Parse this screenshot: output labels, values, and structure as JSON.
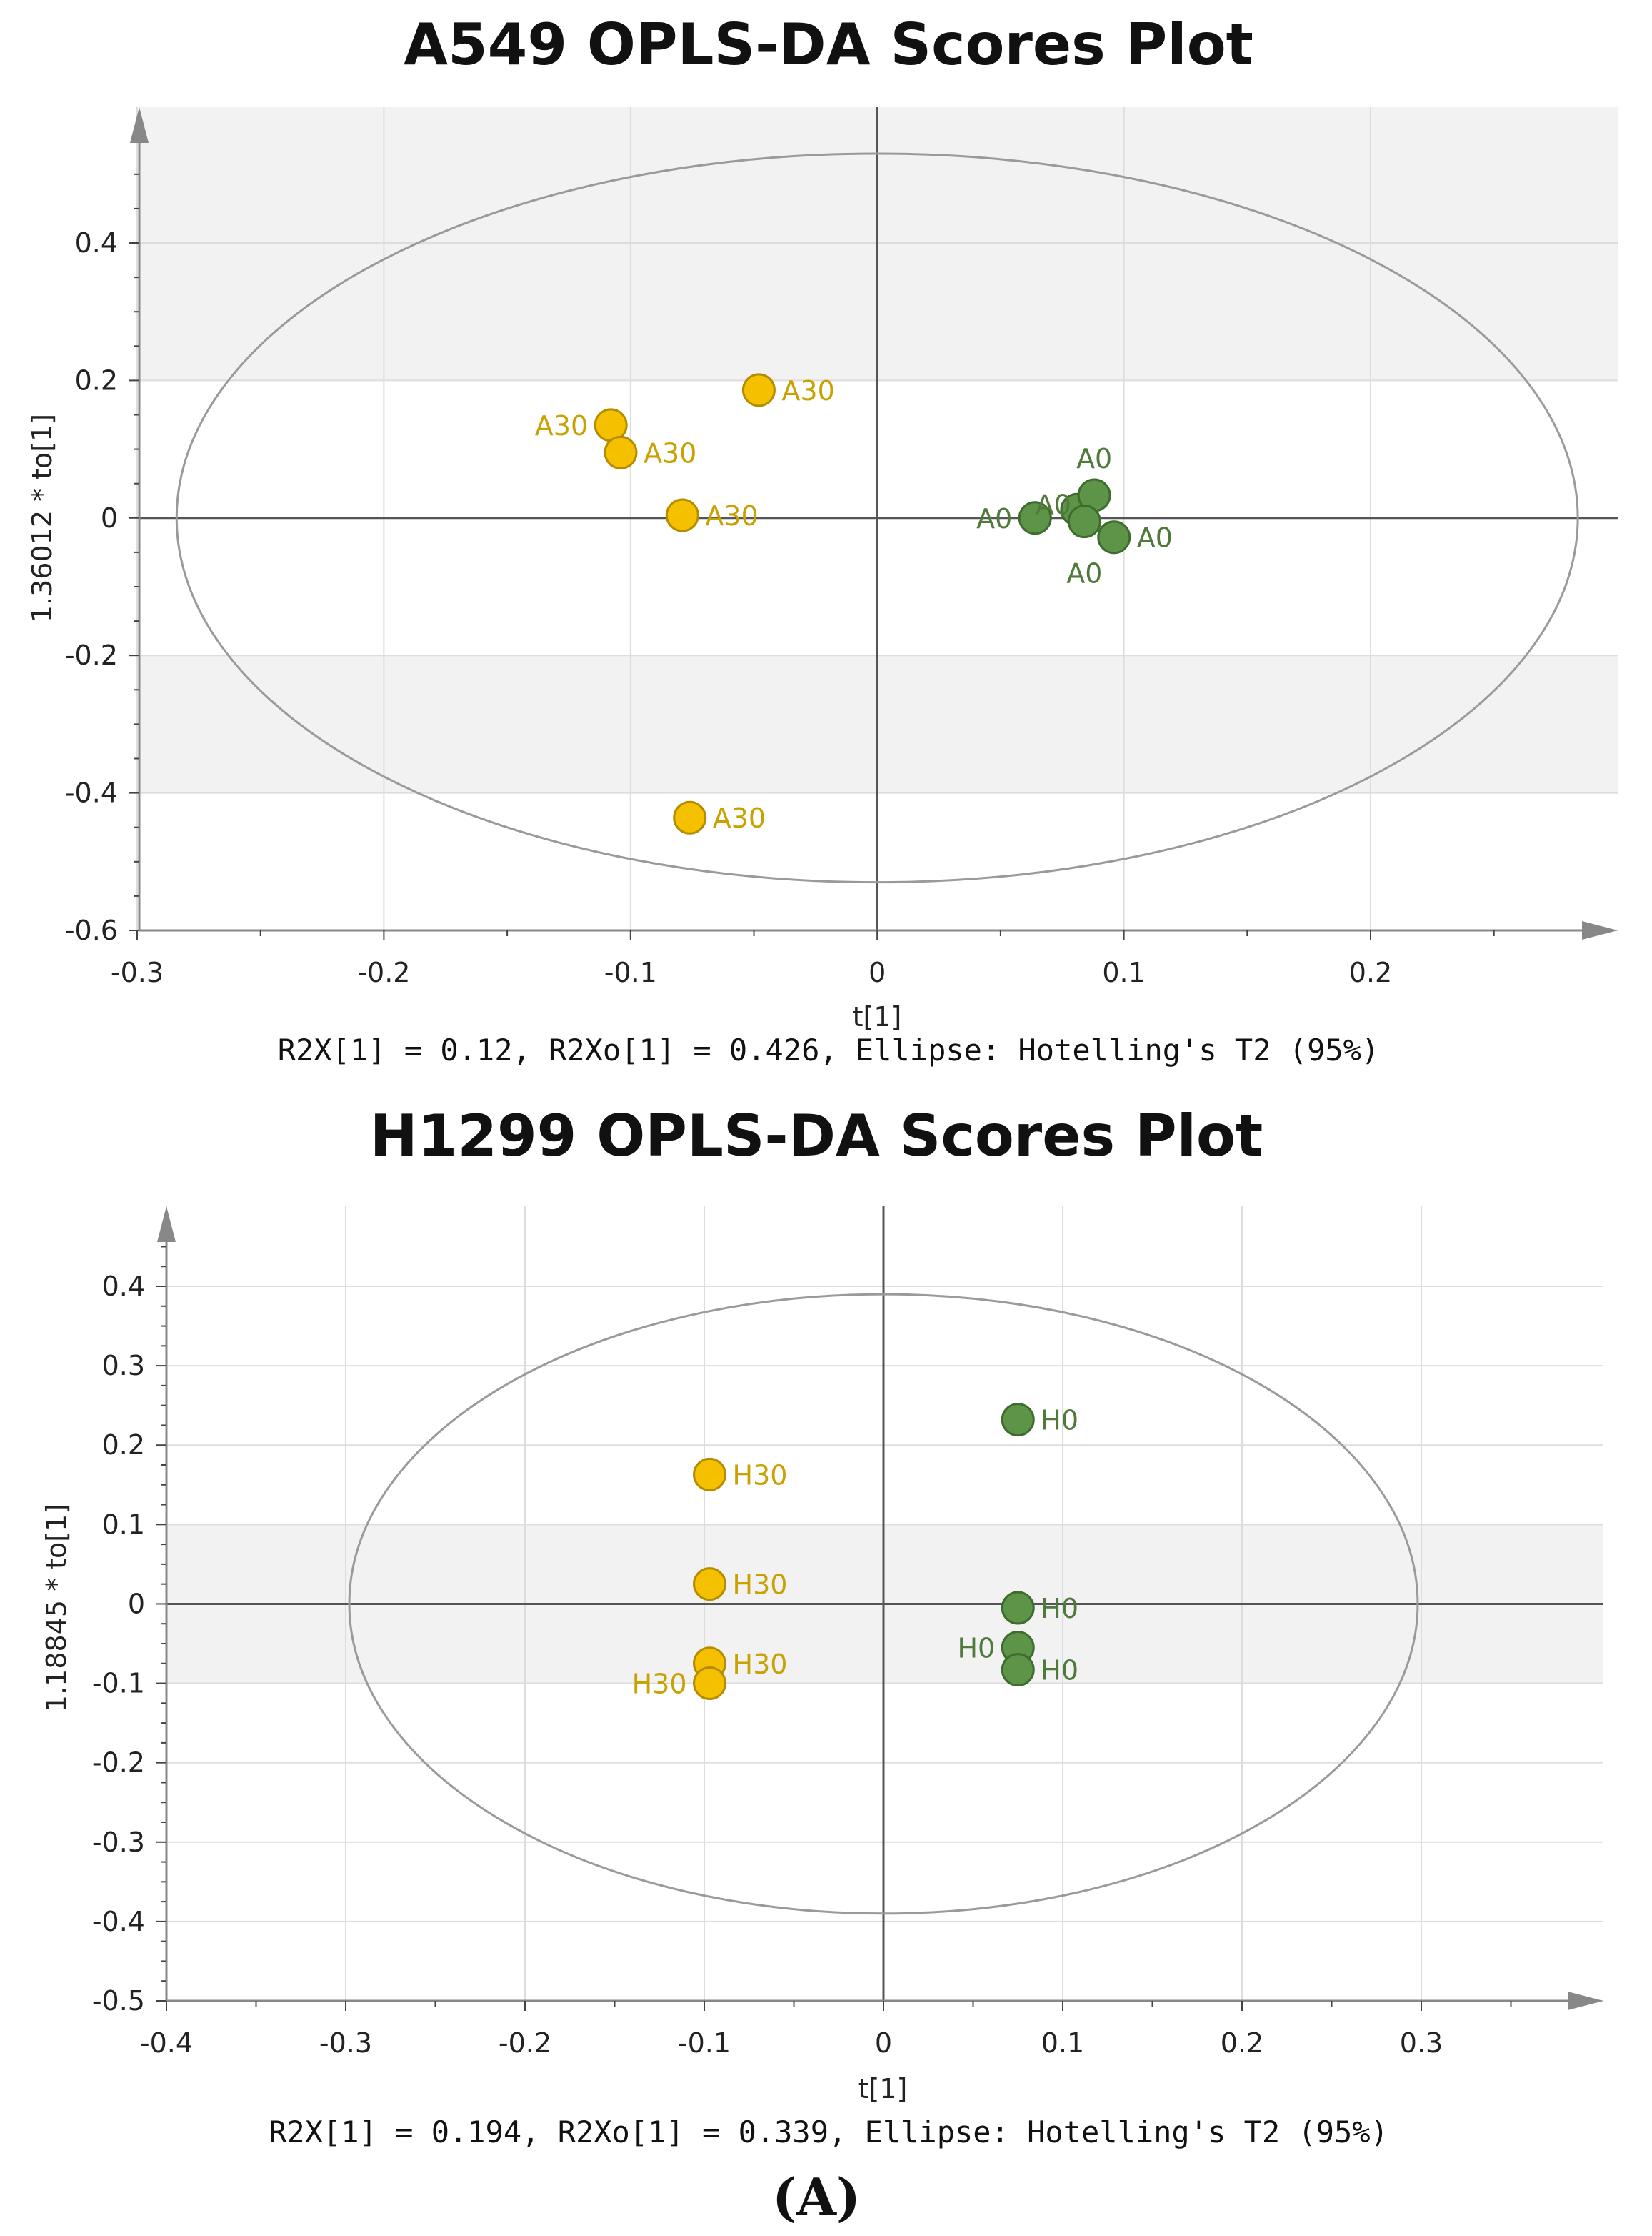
{
  "colors": {
    "a30": "#F5C000",
    "a0": "#5E9448",
    "a30_text": "#C9A100",
    "a0_text": "#4F7A3C",
    "ellipse": "#9a9a9a",
    "band": "#f2f2f2",
    "axis": "#888888"
  },
  "panel_label": "(A)",
  "chart_data": [
    {
      "type": "scatter",
      "title": "A549  OPLS-DA Scores Plot",
      "xlabel": "t[1]",
      "ylabel": "1.36012 * to[1]",
      "xlim": [
        -0.3,
        0.3
      ],
      "ylim": [
        -0.6,
        0.55
      ],
      "xticks": [
        -0.3,
        -0.2,
        -0.1,
        0,
        0.1,
        0.2
      ],
      "xtick_labels": [
        "-0.3",
        "-0.2",
        "-0.1",
        "0",
        "0.1",
        "0.2"
      ],
      "yticks": [
        -0.6,
        -0.4,
        -0.2,
        0,
        0.2,
        0.4
      ],
      "ytick_labels": [
        "-0.6",
        "-0.4",
        "-0.2",
        "0",
        "0.2",
        "0.4"
      ],
      "ellipse": {
        "rx": 0.284,
        "ry": 0.53
      },
      "footer": "R2X[1] = 0.12, R2Xo[1] = 0.426, Ellipse: Hotelling's T2 (95%)",
      "series": [
        {
          "name": "A30",
          "color_key": "a30",
          "points": [
            {
              "x": -0.108,
              "y": 0.135,
              "label": "A30",
              "side": "left"
            },
            {
              "x": -0.104,
              "y": 0.095,
              "label": "A30",
              "side": "right"
            },
            {
              "x": -0.048,
              "y": 0.186,
              "label": "A30",
              "side": "right"
            },
            {
              "x": -0.079,
              "y": 0.004,
              "label": "A30",
              "side": "right"
            },
            {
              "x": -0.076,
              "y": -0.436,
              "label": "A30",
              "side": "right"
            }
          ]
        },
        {
          "name": "A0",
          "color_key": "a0",
          "points": [
            {
              "x": 0.064,
              "y": 0.0,
              "label": "A0",
              "side": "left"
            },
            {
              "x": 0.081,
              "y": 0.012,
              "label": "A0",
              "side": "top-left-small"
            },
            {
              "x": 0.088,
              "y": 0.033,
              "label": "A0",
              "side": "top"
            },
            {
              "x": 0.084,
              "y": -0.005,
              "label": "A0",
              "side": "bottom"
            },
            {
              "x": 0.096,
              "y": -0.028,
              "label": "A0",
              "side": "right"
            }
          ]
        }
      ]
    },
    {
      "type": "scatter",
      "title": "H1299  OPLS-DA  Scores Plot",
      "xlabel": "t[1]",
      "ylabel": "1.18845 * to[1]",
      "xlim": [
        -0.4,
        0.4
      ],
      "ylim": [
        -0.5,
        0.5
      ],
      "xticks": [
        -0.4,
        -0.3,
        -0.2,
        -0.1,
        0,
        0.1,
        0.2,
        0.3
      ],
      "xtick_labels": [
        "-0.4",
        "-0.3",
        "-0.2",
        "-0.1",
        "0",
        "0.1",
        "0.2",
        "0.3"
      ],
      "yticks": [
        -0.5,
        -0.4,
        -0.3,
        -0.2,
        -0.1,
        0,
        0.1,
        0.2,
        0.3,
        0.4
      ],
      "ytick_labels": [
        "-0.5",
        "-0.4",
        "-0.3",
        "-0.2",
        "-0.1",
        "0",
        "0.1",
        "0.2",
        "0.3",
        "0.4"
      ],
      "ellipse": {
        "rx": 0.298,
        "ry": 0.39
      },
      "footer": "R2X[1] = 0.194, R2Xo[1] = 0.339, Ellipse: Hotelling's T2 (95%)",
      "series": [
        {
          "name": "H30",
          "color_key": "a30",
          "points": [
            {
              "x": -0.097,
              "y": 0.163,
              "label": "H30",
              "side": "right"
            },
            {
              "x": -0.097,
              "y": 0.025,
              "label": "H30",
              "side": "right"
            },
            {
              "x": -0.097,
              "y": -0.075,
              "label": "H30",
              "side": "right"
            },
            {
              "x": -0.097,
              "y": -0.1,
              "label": "H30",
              "side": "left"
            }
          ]
        },
        {
          "name": "H0",
          "color_key": "a0",
          "points": [
            {
              "x": 0.075,
              "y": 0.232,
              "label": "H0",
              "side": "right"
            },
            {
              "x": 0.075,
              "y": -0.005,
              "label": "H0",
              "side": "right"
            },
            {
              "x": 0.075,
              "y": -0.055,
              "label": "H0",
              "side": "left"
            },
            {
              "x": 0.075,
              "y": -0.083,
              "label": "H0",
              "side": "right"
            }
          ]
        }
      ]
    }
  ]
}
